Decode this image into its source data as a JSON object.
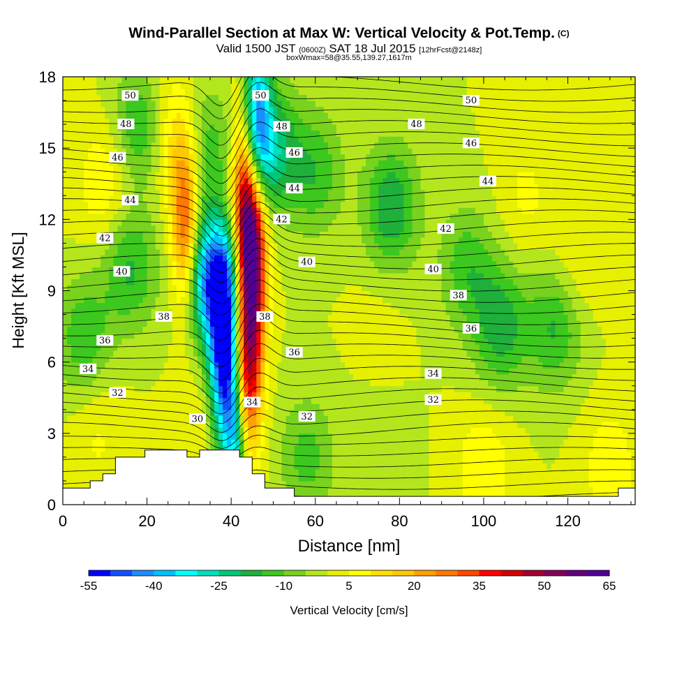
{
  "header": {
    "title": "Wind-Parallel Section at Max W: Vertical Velocity & Pot.Temp.",
    "copyright": "(C)",
    "valid_prefix": "Valid 1500 JST",
    "valid_utc": "(0600Z)",
    "valid_date": "SAT 18 Jul 2015",
    "forecast": "[12hrFcst@2148z]",
    "box_info": "boxWmax=58@35.55,139.27,1617m"
  },
  "chart_data": {
    "type": "heatmap",
    "xlabel": "Distance [nm]",
    "ylabel": "Height [Kft MSL]",
    "xlim": [
      0,
      136
    ],
    "ylim": [
      0,
      18
    ],
    "x_ticks": [
      0,
      20,
      40,
      60,
      80,
      100,
      120
    ],
    "y_ticks": [
      0,
      3,
      6,
      9,
      12,
      15,
      18
    ],
    "colorbar": {
      "label": "Vertical Velocity [cm/s]",
      "tick_labels": [
        "-55",
        "-40",
        "-25",
        "-10",
        "5",
        "20",
        "35",
        "50",
        "65"
      ],
      "min": -55,
      "max": 65,
      "step": 5,
      "colors": [
        "#0000ff",
        "#0f4fff",
        "#1e8cff",
        "#00c0ff",
        "#00ffff",
        "#00e0c0",
        "#00c878",
        "#1fb03c",
        "#3cc81e",
        "#78d21e",
        "#b4e61e",
        "#e6f000",
        "#ffff00",
        "#ffe000",
        "#ffc800",
        "#ffa000",
        "#ff7800",
        "#ff4800",
        "#ff0000",
        "#d20000",
        "#a00032",
        "#82005a",
        "#640078",
        "#500096"
      ]
    },
    "velocity_features": [
      {
        "x": 10,
        "z": 13.5,
        "w": 10
      },
      {
        "x": 5,
        "z": 7,
        "w": -14
      },
      {
        "x": 16,
        "z": 10,
        "w": -16
      },
      {
        "x": 19,
        "z": 16,
        "w": -20
      },
      {
        "x": 23,
        "z": 16.5,
        "w": 8
      },
      {
        "x": 29,
        "z": 11.5,
        "w": 35
      },
      {
        "x": 28,
        "z": 15,
        "w": 15
      },
      {
        "x": 33,
        "z": 15,
        "w": -18
      },
      {
        "x": 35,
        "z": 9,
        "w": -22
      },
      {
        "x": 38,
        "z": 6.5,
        "w": -50
      },
      {
        "x": 36,
        "z": 10,
        "w": -25
      },
      {
        "x": 41,
        "z": 3,
        "w": -35
      },
      {
        "x": 45,
        "z": 10.5,
        "w": 62
      },
      {
        "x": 44,
        "z": 5.5,
        "w": 45
      },
      {
        "x": 43,
        "z": 13.5,
        "w": 35
      },
      {
        "x": 46,
        "z": 16.5,
        "w": -35
      },
      {
        "x": 49,
        "z": 15,
        "w": -25
      },
      {
        "x": 60,
        "z": 14,
        "w": -14
      },
      {
        "x": 78,
        "z": 12.5,
        "w": -20
      },
      {
        "x": 96,
        "z": 10,
        "w": -13
      },
      {
        "x": 104,
        "z": 7.5,
        "w": -18
      },
      {
        "x": 117,
        "z": 7.5,
        "w": -16
      },
      {
        "x": 110,
        "z": 13,
        "w": 6
      },
      {
        "x": 122,
        "z": 10,
        "w": 6
      },
      {
        "x": 100,
        "z": 1.5,
        "w": 10
      },
      {
        "x": 130,
        "z": 1.5,
        "w": 9
      },
      {
        "x": 58,
        "z": 2,
        "w": -12
      },
      {
        "x": 75,
        "z": 1.5,
        "w": -4
      },
      {
        "x": 8,
        "z": 3,
        "w": 6
      },
      {
        "x": 32,
        "z": 3,
        "w": 4
      },
      {
        "x": 75,
        "z": 8,
        "w": 2
      }
    ],
    "isentrope_labels": [
      {
        "x": 16,
        "z": 17.2,
        "text": "50"
      },
      {
        "x": 47,
        "z": 17.2,
        "text": "50"
      },
      {
        "x": 97,
        "z": 17.0,
        "text": "50"
      },
      {
        "x": 15,
        "z": 16.0,
        "text": "48"
      },
      {
        "x": 52,
        "z": 15.9,
        "text": "48"
      },
      {
        "x": 84,
        "z": 16.0,
        "text": "48"
      },
      {
        "x": 13,
        "z": 14.6,
        "text": "46"
      },
      {
        "x": 55,
        "z": 14.8,
        "text": "46"
      },
      {
        "x": 97,
        "z": 15.2,
        "text": "46"
      },
      {
        "x": 16,
        "z": 12.8,
        "text": "44"
      },
      {
        "x": 55,
        "z": 13.3,
        "text": "44"
      },
      {
        "x": 101,
        "z": 13.6,
        "text": "44"
      },
      {
        "x": 10,
        "z": 11.2,
        "text": "42"
      },
      {
        "x": 52,
        "z": 12.0,
        "text": "42"
      },
      {
        "x": 91,
        "z": 11.6,
        "text": "42"
      },
      {
        "x": 14,
        "z": 9.8,
        "text": "40"
      },
      {
        "x": 58,
        "z": 10.2,
        "text": "40"
      },
      {
        "x": 88,
        "z": 9.9,
        "text": "40"
      },
      {
        "x": 24,
        "z": 7.9,
        "text": "38"
      },
      {
        "x": 48,
        "z": 7.9,
        "text": "38"
      },
      {
        "x": 94,
        "z": 8.8,
        "text": "38"
      },
      {
        "x": 10,
        "z": 6.9,
        "text": "36"
      },
      {
        "x": 55,
        "z": 6.4,
        "text": "36"
      },
      {
        "x": 97,
        "z": 7.4,
        "text": "36"
      },
      {
        "x": 6,
        "z": 5.7,
        "text": "34"
      },
      {
        "x": 45,
        "z": 4.3,
        "text": "34"
      },
      {
        "x": 88,
        "z": 5.5,
        "text": "34"
      },
      {
        "x": 13,
        "z": 4.7,
        "text": "32"
      },
      {
        "x": 58,
        "z": 3.7,
        "text": "32"
      },
      {
        "x": 88,
        "z": 4.4,
        "text": "32"
      },
      {
        "x": 32,
        "z": 3.6,
        "text": "30"
      }
    ],
    "terrain": [
      [
        0,
        0.7
      ],
      [
        6.5,
        0.7
      ],
      [
        6.5,
        1.0
      ],
      [
        9.5,
        1.0
      ],
      [
        9.5,
        1.3
      ],
      [
        12.5,
        1.3
      ],
      [
        12.5,
        2.0
      ],
      [
        19.5,
        2.0
      ],
      [
        19.5,
        2.3
      ],
      [
        29.5,
        2.3
      ],
      [
        29.5,
        2.0
      ],
      [
        32.5,
        2.0
      ],
      [
        32.5,
        2.3
      ],
      [
        42,
        2.3
      ],
      [
        42,
        2.0
      ],
      [
        45,
        2.0
      ],
      [
        45,
        1.3
      ],
      [
        48,
        1.3
      ],
      [
        48,
        0.7
      ],
      [
        55,
        0.7
      ],
      [
        55,
        0.35
      ],
      [
        132,
        0.35
      ],
      [
        132,
        0.7
      ],
      [
        136,
        0.7
      ]
    ]
  }
}
